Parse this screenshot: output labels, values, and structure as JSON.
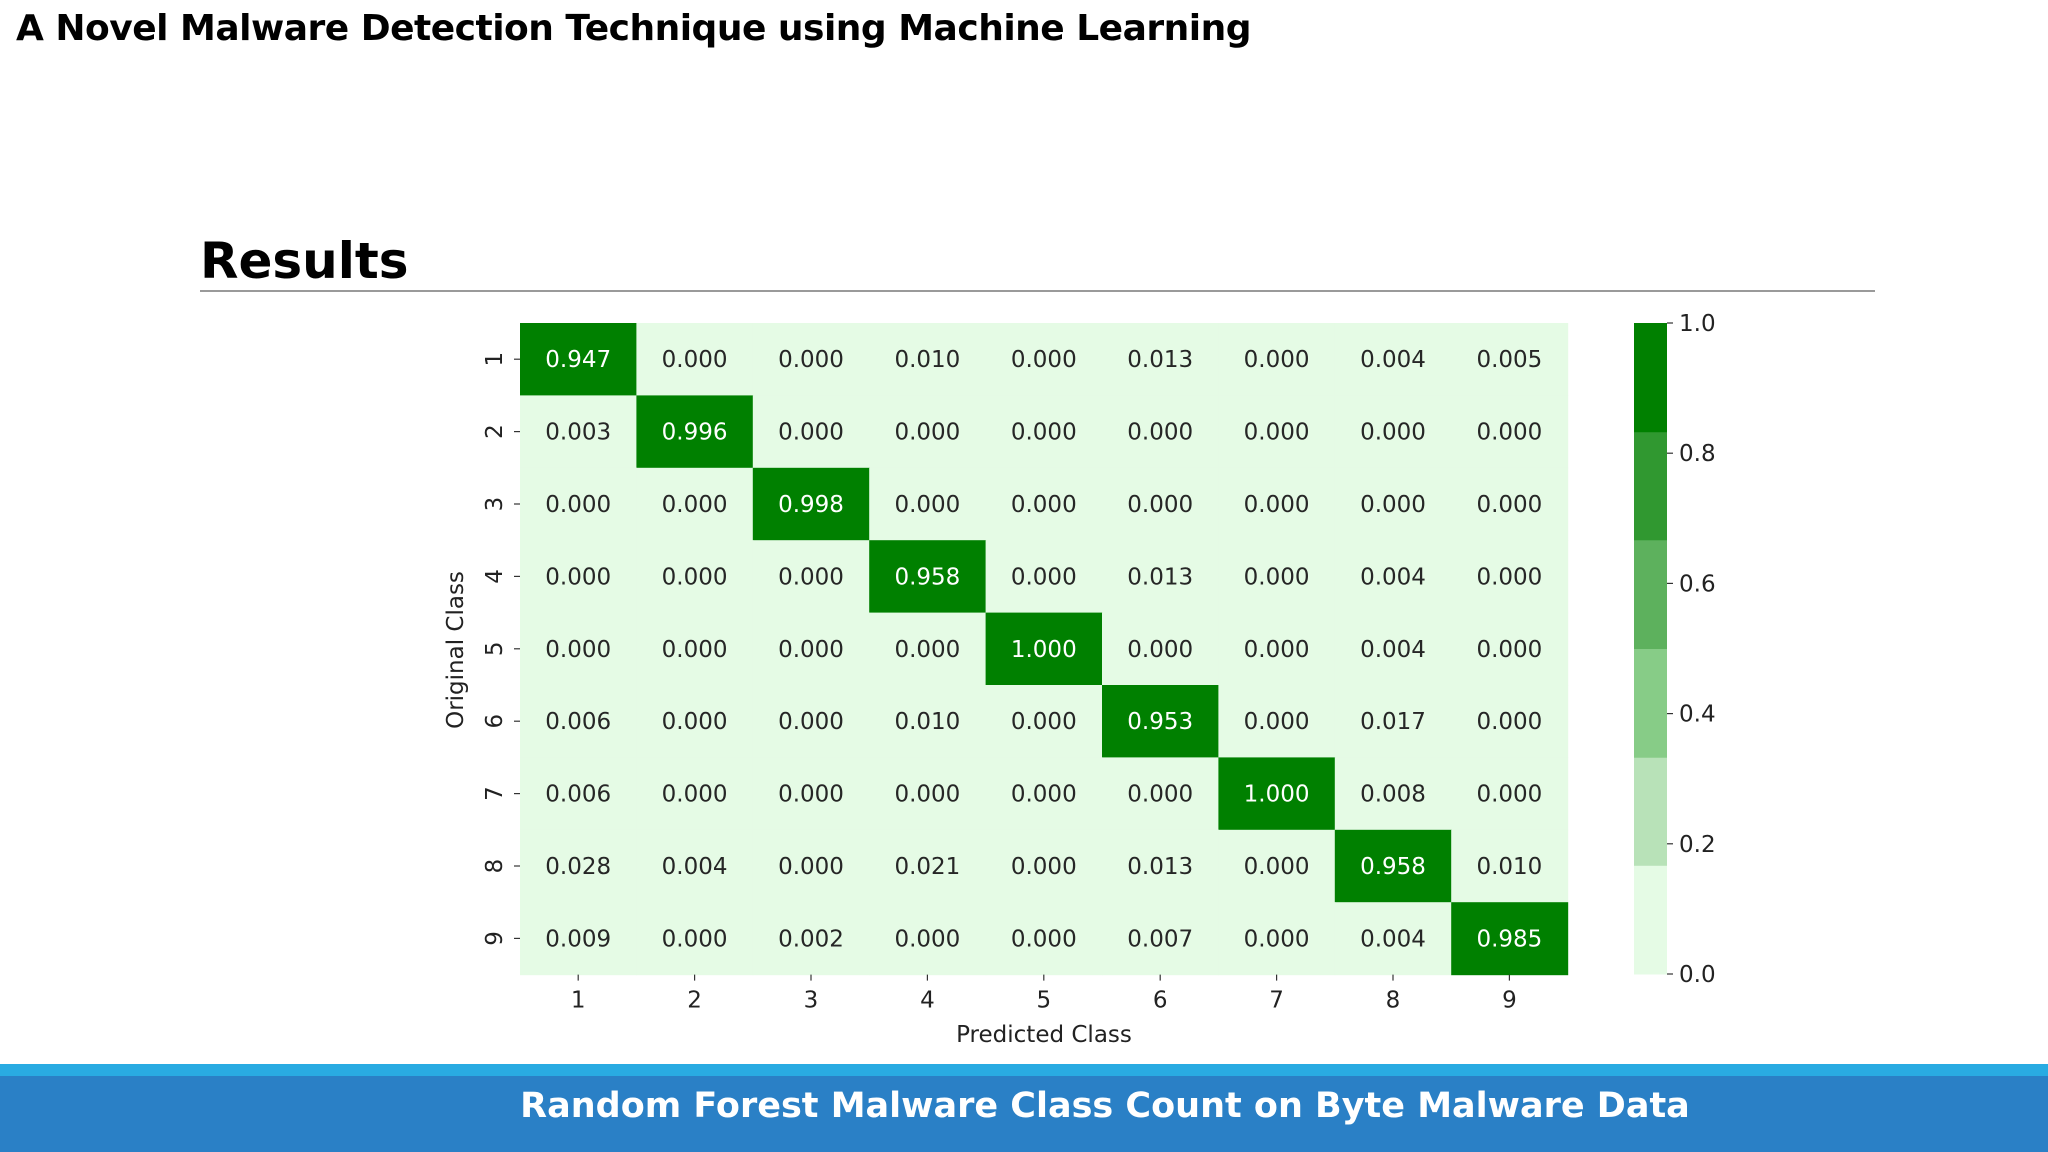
{
  "slide": {
    "title": "A Novel Malware Detection Technique using Machine Learning",
    "section_heading": "Results",
    "footer_caption": "Random Forest Malware Class Count on Byte Malware Data"
  },
  "chart_data": {
    "type": "heatmap",
    "title": "",
    "xlabel": "Predicted Class",
    "ylabel": "Original Class",
    "x_tick_labels": [
      "1",
      "2",
      "3",
      "4",
      "5",
      "6",
      "7",
      "8",
      "9"
    ],
    "y_tick_labels": [
      "1",
      "2",
      "3",
      "4",
      "5",
      "6",
      "7",
      "8",
      "9"
    ],
    "values": [
      [
        0.947,
        0.0,
        0.0,
        0.01,
        0.0,
        0.013,
        0.0,
        0.004,
        0.005
      ],
      [
        0.003,
        0.996,
        0.0,
        0.0,
        0.0,
        0.0,
        0.0,
        0.0,
        0.0
      ],
      [
        0.0,
        0.0,
        0.998,
        0.0,
        0.0,
        0.0,
        0.0,
        0.0,
        0.0
      ],
      [
        0.0,
        0.0,
        0.0,
        0.958,
        0.0,
        0.013,
        0.0,
        0.004,
        0.0
      ],
      [
        0.0,
        0.0,
        0.0,
        0.0,
        1.0,
        0.0,
        0.0,
        0.004,
        0.0
      ],
      [
        0.006,
        0.0,
        0.0,
        0.01,
        0.0,
        0.953,
        0.0,
        0.017,
        0.0
      ],
      [
        0.006,
        0.0,
        0.0,
        0.0,
        0.0,
        0.0,
        1.0,
        0.008,
        0.0
      ],
      [
        0.028,
        0.004,
        0.0,
        0.021,
        0.0,
        0.013,
        0.0,
        0.958,
        0.01
      ],
      [
        0.009,
        0.0,
        0.002,
        0.0,
        0.0,
        0.007,
        0.0,
        0.004,
        0.985
      ]
    ],
    "value_format": "3 decimals",
    "colorbar": {
      "range": [
        0.0,
        1.0
      ],
      "tick_labels": [
        "0.0",
        "0.2",
        "0.4",
        "0.6",
        "0.8",
        "1.0"
      ],
      "tick_values": [
        0.0,
        0.2,
        0.4,
        0.6,
        0.8,
        1.0
      ],
      "levels": [
        {
          "from": 0.0,
          "to": 0.167,
          "color": "#e5fbe5"
        },
        {
          "from": 0.167,
          "to": 0.333,
          "color": "#b8e2b8"
        },
        {
          "from": 0.333,
          "to": 0.5,
          "color": "#87cc87"
        },
        {
          "from": 0.5,
          "to": 0.667,
          "color": "#5db15d"
        },
        {
          "from": 0.667,
          "to": 0.833,
          "color": "#309830"
        },
        {
          "from": 0.833,
          "to": 1.0,
          "color": "#008000"
        }
      ]
    },
    "grid": false,
    "legend": "colorbar at right"
  }
}
